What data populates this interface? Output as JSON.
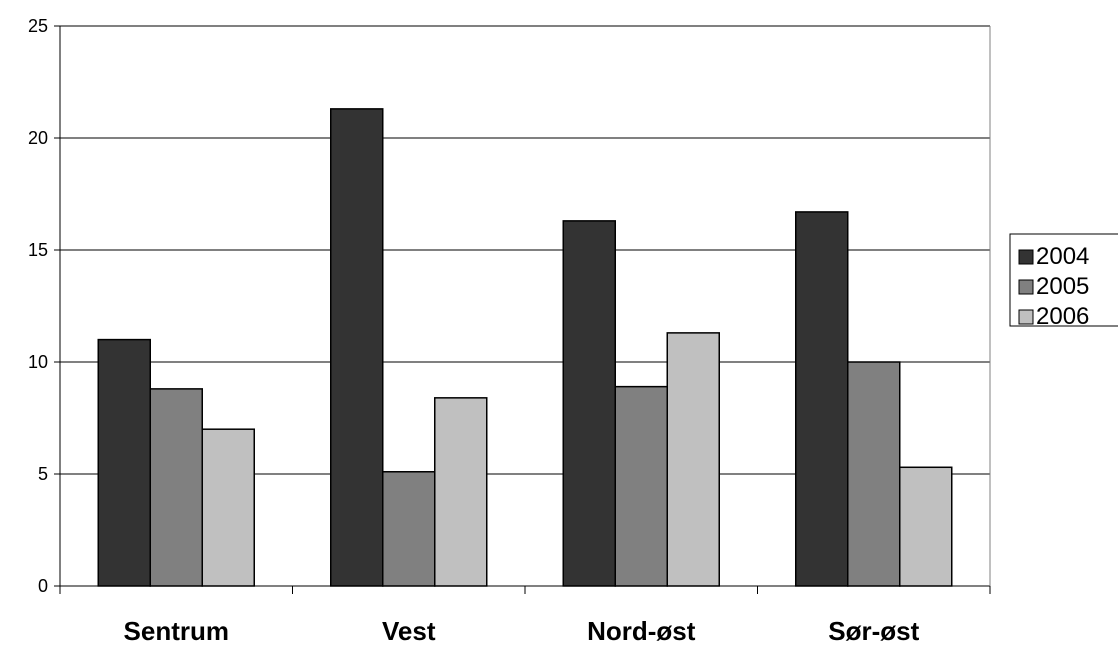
{
  "chart_data": {
    "type": "bar",
    "categories": [
      "Sentrum",
      "Vest",
      "Nord-øst",
      "Sør-øst"
    ],
    "series": [
      {
        "name": "2004",
        "values": [
          11.0,
          21.3,
          16.3,
          16.7
        ],
        "color": "#333333"
      },
      {
        "name": "2005",
        "values": [
          8.8,
          5.1,
          8.9,
          10.0
        ],
        "color": "#808080"
      },
      {
        "name": "2006",
        "values": [
          7.0,
          8.4,
          11.3,
          5.3
        ],
        "color": "#c0c0c0"
      }
    ],
    "ylim": [
      0,
      25
    ],
    "yticks": [
      "0",
      "5",
      "10",
      "15",
      "20",
      "25"
    ],
    "grid": true,
    "legend_position": "right",
    "title": "",
    "xlabel": "",
    "ylabel": ""
  }
}
